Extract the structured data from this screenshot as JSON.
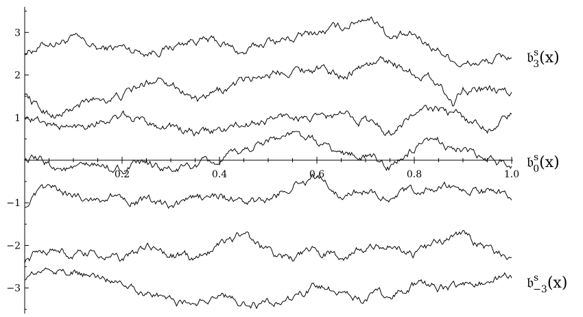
{
  "chart_data": {
    "type": "line",
    "xlim": [
      0,
      1.0
    ],
    "ylim": [
      -3.6,
      3.6
    ],
    "x_ticks": [
      "0.2",
      "0.4",
      "0.6",
      "0.8",
      "1.0"
    ],
    "y_ticks": [
      "3",
      "2",
      "1",
      "-1",
      "-2",
      "-3"
    ],
    "grid": false,
    "labels": {
      "top": {
        "base": "𝔟",
        "sup": "s",
        "sub": "3",
        "arg": "(x)"
      },
      "middle": {
        "base": "𝔟",
        "sup": "s",
        "sub": "0",
        "arg": "(x)"
      },
      "bottom": {
        "base": "𝔟",
        "sup": "s",
        "sub": "−3",
        "arg": "(x)"
      }
    },
    "series": [
      {
        "x": [
          0.0,
          0.05,
          0.1,
          0.15,
          0.2,
          0.25,
          0.3,
          0.35,
          0.4,
          0.45,
          0.5,
          0.55,
          0.6,
          0.65,
          0.7,
          0.73,
          0.75,
          0.8,
          0.85,
          0.9,
          0.95,
          1.0
        ],
        "y": [
          2.55,
          2.75,
          2.85,
          2.6,
          2.65,
          2.55,
          2.65,
          2.85,
          2.75,
          2.5,
          2.8,
          2.85,
          3.0,
          3.1,
          3.4,
          3.25,
          2.85,
          2.9,
          2.6,
          2.25,
          2.3,
          2.45
        ]
      },
      {
        "x": [
          0.0,
          0.03,
          0.07,
          0.1,
          0.15,
          0.2,
          0.25,
          0.28,
          0.32,
          0.36,
          0.4,
          0.45,
          0.5,
          0.55,
          0.6,
          0.65,
          0.7,
          0.75,
          0.8,
          0.85,
          0.88,
          0.9,
          0.95,
          1.0
        ],
        "y": [
          1.6,
          1.2,
          1.05,
          1.2,
          1.45,
          1.5,
          1.8,
          2.0,
          1.7,
          1.35,
          1.6,
          1.85,
          2.05,
          2.15,
          2.15,
          2.0,
          2.25,
          2.35,
          2.05,
          1.85,
          1.3,
          1.75,
          1.6,
          1.55
        ]
      },
      {
        "x": [
          0.0,
          0.05,
          0.1,
          0.15,
          0.2,
          0.25,
          0.3,
          0.35,
          0.4,
          0.45,
          0.5,
          0.55,
          0.6,
          0.65,
          0.7,
          0.75,
          0.8,
          0.85,
          0.9,
          0.95,
          1.0
        ],
        "y": [
          1.05,
          0.85,
          0.75,
          0.95,
          1.0,
          0.9,
          0.8,
          0.6,
          0.7,
          0.8,
          0.95,
          1.05,
          0.95,
          1.05,
          0.95,
          0.65,
          1.1,
          1.2,
          1.0,
          0.75,
          1.05
        ]
      },
      {
        "x": [
          0.0,
          0.05,
          0.1,
          0.15,
          0.2,
          0.25,
          0.3,
          0.35,
          0.4,
          0.45,
          0.5,
          0.55,
          0.6,
          0.65,
          0.7,
          0.75,
          0.8,
          0.85,
          0.9,
          0.95,
          1.0
        ],
        "y": [
          0.05,
          -0.1,
          -0.25,
          -0.15,
          -0.2,
          -0.1,
          -0.25,
          -0.15,
          -0.05,
          0.2,
          0.5,
          0.6,
          0.4,
          0.15,
          0.1,
          -0.15,
          0.25,
          0.4,
          0.25,
          -0.05,
          -0.1
        ]
      },
      {
        "x": [
          0.0,
          0.05,
          0.1,
          0.15,
          0.2,
          0.25,
          0.3,
          0.35,
          0.4,
          0.45,
          0.5,
          0.55,
          0.6,
          0.65,
          0.7,
          0.75,
          0.8,
          0.85,
          0.9,
          0.95,
          1.0
        ],
        "y": [
          -1.05,
          -0.65,
          -0.85,
          -0.9,
          -0.85,
          -0.95,
          -1.15,
          -0.9,
          -0.85,
          -1.0,
          -1.0,
          -0.55,
          -0.4,
          -0.8,
          -0.7,
          -0.85,
          -0.75,
          -0.65,
          -0.7,
          -0.75,
          -0.85
        ]
      },
      {
        "x": [
          0.0,
          0.05,
          0.1,
          0.15,
          0.2,
          0.25,
          0.3,
          0.35,
          0.4,
          0.45,
          0.5,
          0.55,
          0.6,
          0.65,
          0.7,
          0.75,
          0.8,
          0.85,
          0.9,
          0.95,
          1.0
        ],
        "y": [
          -2.35,
          -2.05,
          -2.25,
          -2.2,
          -2.35,
          -2.05,
          -2.2,
          -2.35,
          -1.9,
          -1.75,
          -2.15,
          -2.3,
          -2.15,
          -2.2,
          -2.1,
          -2.0,
          -2.2,
          -1.95,
          -1.75,
          -2.05,
          -2.3
        ]
      },
      {
        "x": [
          0.0,
          0.05,
          0.1,
          0.15,
          0.2,
          0.25,
          0.3,
          0.35,
          0.4,
          0.45,
          0.5,
          0.55,
          0.6,
          0.65,
          0.7,
          0.75,
          0.8,
          0.85,
          0.9,
          0.95,
          1.0
        ],
        "y": [
          -2.75,
          -2.55,
          -2.65,
          -2.75,
          -2.8,
          -3.1,
          -3.3,
          -3.35,
          -3.15,
          -3.35,
          -3.4,
          -3.25,
          -3.0,
          -3.05,
          -3.25,
          -3.15,
          -2.95,
          -3.0,
          -2.95,
          -2.8,
          -2.75
        ]
      }
    ]
  }
}
